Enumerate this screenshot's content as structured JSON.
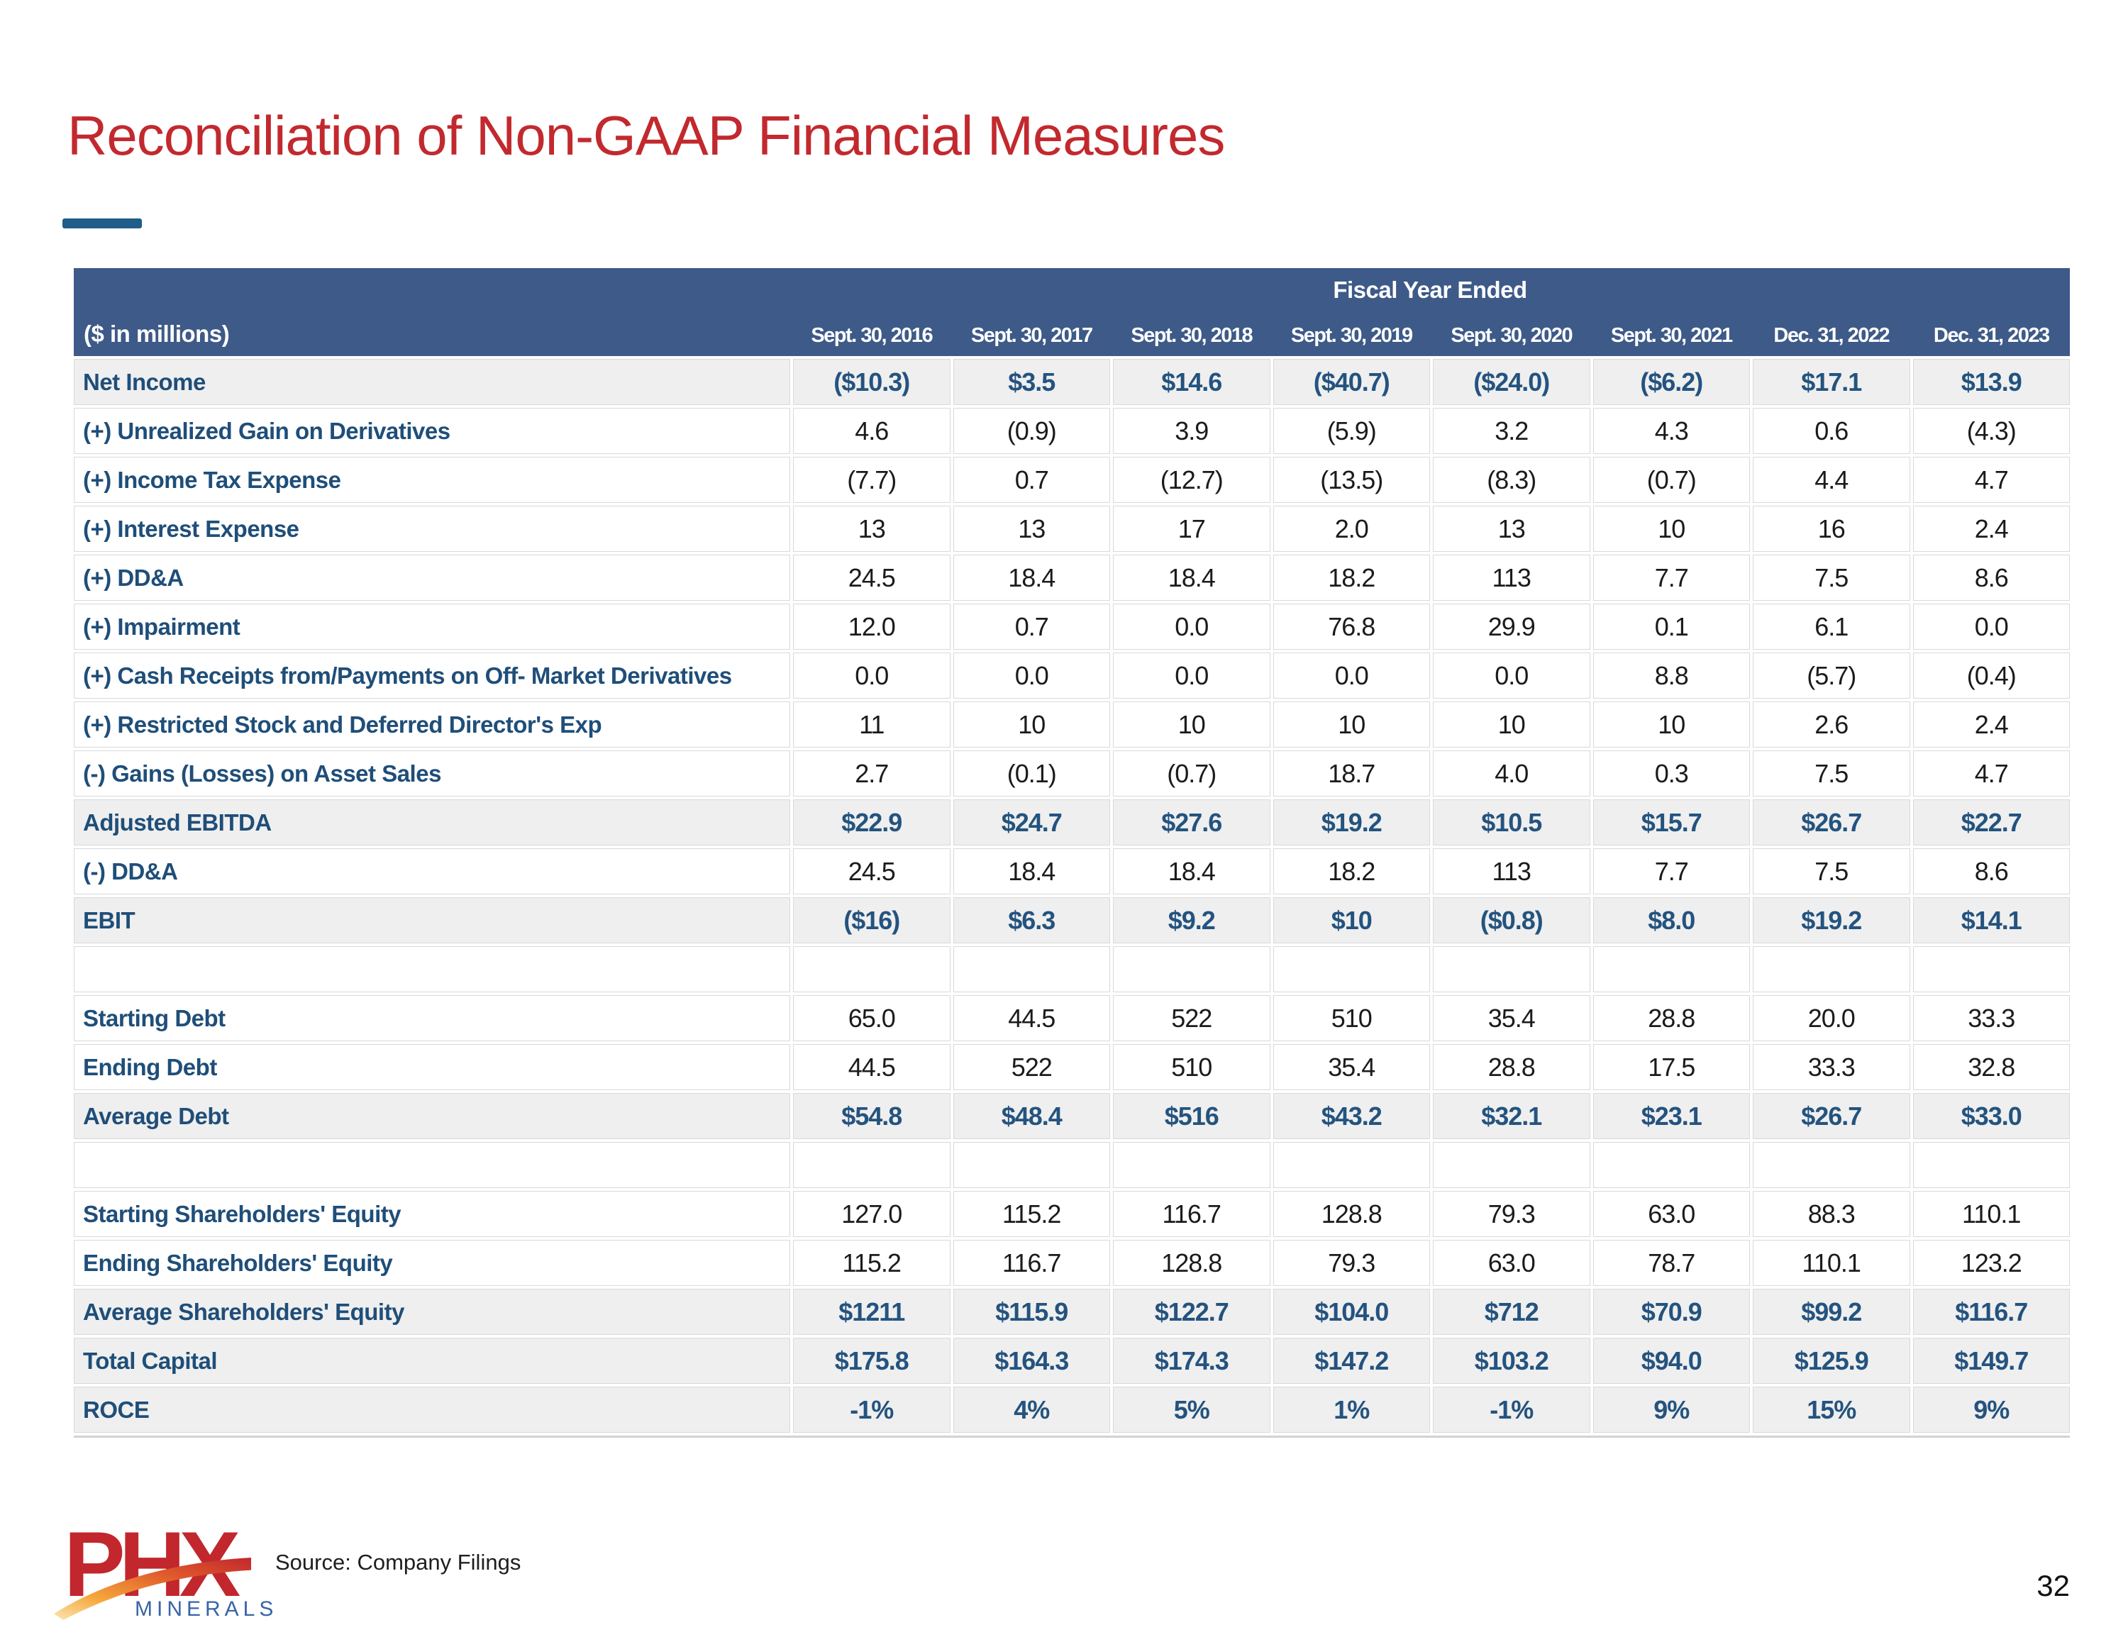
{
  "page": {
    "title": "Reconciliation of Non-GAAP Financial Measures",
    "source": "Source: Company Filings",
    "page_number": "32"
  },
  "logo": {
    "text": "PHX",
    "subtext": "MINERALS"
  },
  "colors": {
    "title_red": "#C2292E",
    "band_blue": "#3D5A88",
    "label_navy": "#1F4E79",
    "total_value_blue": "#24537F",
    "total_row_gray": "#EFEFEF",
    "border_gray": "#D9D9D9",
    "dash_blue": "#1F5C8A",
    "logo_red": "#C1272D",
    "logo_blue": "#3864A8"
  },
  "table": {
    "group_header": "Fiscal Year Ended",
    "corner_label": "($ in millions)",
    "columns": [
      "Sept. 30, 2016",
      "Sept. 30, 2017",
      "Sept. 30, 2018",
      "Sept. 30, 2019",
      "Sept. 30, 2020",
      "Sept. 30, 2021",
      "Dec. 31, 2022",
      "Dec. 31, 2023"
    ],
    "rows": [
      {
        "type": "total",
        "label": "Net Income",
        "values": [
          "($10.3)",
          "$3.5",
          "$14.6",
          "($40.7)",
          "($24.0)",
          "($6.2)",
          "$17.1",
          "$13.9"
        ]
      },
      {
        "type": "data",
        "label": "(+) Unrealized Gain on Derivatives",
        "values": [
          "4.6",
          "(0.9)",
          "3.9",
          "(5.9)",
          "3.2",
          "4.3",
          "0.6",
          "(4.3)"
        ]
      },
      {
        "type": "data",
        "label": "(+) Income Tax Expense",
        "values": [
          "(7.7)",
          "0.7",
          "(12.7)",
          "(13.5)",
          "(8.3)",
          "(0.7)",
          "4.4",
          "4.7"
        ]
      },
      {
        "type": "data",
        "label": "(+) Interest Expense",
        "values": [
          "13",
          "13",
          "17",
          "2.0",
          "13",
          "10",
          "16",
          "2.4"
        ]
      },
      {
        "type": "data",
        "label": "(+) DD&A",
        "values": [
          "24.5",
          "18.4",
          "18.4",
          "18.2",
          "113",
          "7.7",
          "7.5",
          "8.6"
        ]
      },
      {
        "type": "data",
        "label": "(+) Impairment",
        "values": [
          "12.0",
          "0.7",
          "0.0",
          "76.8",
          "29.9",
          "0.1",
          "6.1",
          "0.0"
        ]
      },
      {
        "type": "data",
        "label": "(+) Cash Receipts from/Payments on Off- Market Derivatives",
        "values": [
          "0.0",
          "0.0",
          "0.0",
          "0.0",
          "0.0",
          "8.8",
          "(5.7)",
          "(0.4)"
        ]
      },
      {
        "type": "data",
        "label": "(+) Restricted Stock and Deferred Director's Exp",
        "values": [
          "11",
          "10",
          "10",
          "10",
          "10",
          "10",
          "2.6",
          "2.4"
        ]
      },
      {
        "type": "data",
        "label": "(-) Gains (Losses) on Asset Sales",
        "values": [
          "2.7",
          "(0.1)",
          "(0.7)",
          "18.7",
          "4.0",
          "0.3",
          "7.5",
          "4.7"
        ]
      },
      {
        "type": "total",
        "label": "Adjusted EBITDA",
        "values": [
          "$22.9",
          "$24.7",
          "$27.6",
          "$19.2",
          "$10.5",
          "$15.7",
          "$26.7",
          "$22.7"
        ]
      },
      {
        "type": "data",
        "label": "(-) DD&A",
        "values": [
          "24.5",
          "18.4",
          "18.4",
          "18.2",
          "113",
          "7.7",
          "7.5",
          "8.6"
        ]
      },
      {
        "type": "total",
        "label": "EBIT",
        "values": [
          "($16)",
          "$6.3",
          "$9.2",
          "$10",
          "($0.8)",
          "$8.0",
          "$19.2",
          "$14.1"
        ]
      },
      {
        "type": "blank",
        "label": "",
        "values": [
          "",
          "",
          "",
          "",
          "",
          "",
          "",
          ""
        ]
      },
      {
        "type": "data",
        "label": "Starting Debt",
        "values": [
          "65.0",
          "44.5",
          "522",
          "510",
          "35.4",
          "28.8",
          "20.0",
          "33.3"
        ]
      },
      {
        "type": "data",
        "label": "Ending Debt",
        "values": [
          "44.5",
          "522",
          "510",
          "35.4",
          "28.8",
          "17.5",
          "33.3",
          "32.8"
        ]
      },
      {
        "type": "total",
        "label": "Average Debt",
        "values": [
          "$54.8",
          "$48.4",
          "$516",
          "$43.2",
          "$32.1",
          "$23.1",
          "$26.7",
          "$33.0"
        ]
      },
      {
        "type": "blank",
        "label": "",
        "values": [
          "",
          "",
          "",
          "",
          "",
          "",
          "",
          ""
        ]
      },
      {
        "type": "data",
        "label": "Starting Shareholders' Equity",
        "values": [
          "127.0",
          "115.2",
          "116.7",
          "128.8",
          "79.3",
          "63.0",
          "88.3",
          "110.1"
        ]
      },
      {
        "type": "data",
        "label": "Ending Shareholders' Equity",
        "values": [
          "115.2",
          "116.7",
          "128.8",
          "79.3",
          "63.0",
          "78.7",
          "110.1",
          "123.2"
        ]
      },
      {
        "type": "total",
        "label": "Average Shareholders' Equity",
        "values": [
          "$1211",
          "$115.9",
          "$122.7",
          "$104.0",
          "$712",
          "$70.9",
          "$99.2",
          "$116.7"
        ]
      },
      {
        "type": "total",
        "label": "Total Capital",
        "values": [
          "$175.8",
          "$164.3",
          "$174.3",
          "$147.2",
          "$103.2",
          "$94.0",
          "$125.9",
          "$149.7"
        ]
      },
      {
        "type": "total",
        "label": "ROCE",
        "values": [
          "-1%",
          "4%",
          "5%",
          "1%",
          "-1%",
          "9%",
          "15%",
          "9%"
        ]
      }
    ]
  }
}
